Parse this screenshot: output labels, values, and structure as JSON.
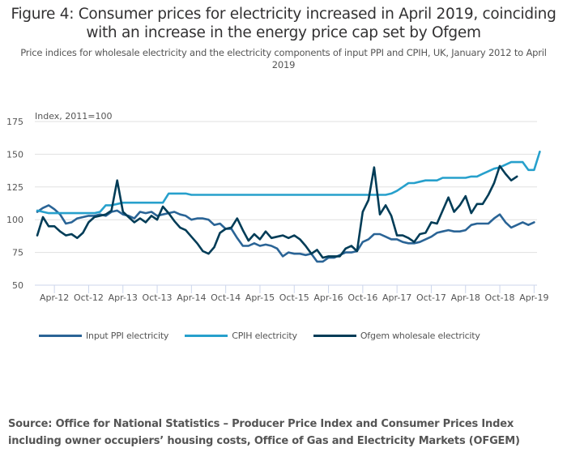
{
  "title": "Figure 4: Consumer prices for electricity increased in April 2019, coinciding with an increase in the energy price cap set by Ofgem",
  "subtitle": "Price indices for wholesale electricity and the electricity components of input PPI and CPIH, UK, January 2012 to April 2019",
  "source": "Source: Office for National Statistics – Producer Price Index and Consumer Prices Index including owner occupiers’ housing costs, Office of Gas and Electricity Markets (OFGEM)",
  "chart_data": {
    "type": "line",
    "title": "Figure 4: Consumer prices for electricity increased in April 2019, coinciding with an increase in the energy price cap set by Ofgem",
    "ylabel": "Index, 2011=100",
    "xlabel": "",
    "ylim": [
      50,
      175
    ],
    "yticks": [
      50,
      75,
      100,
      125,
      150,
      175
    ],
    "x_start": "Jan-12",
    "x_end": "Apr-19",
    "x_tick_labels": [
      "Apr-12",
      "Oct-12",
      "Apr-13",
      "Oct-13",
      "Apr-14",
      "Oct-14",
      "Apr-15",
      "Oct-15",
      "Apr-16",
      "Oct-16",
      "Apr-17",
      "Oct-17",
      "Apr-18",
      "Oct-18",
      "Apr-19"
    ],
    "x_tick_month_index": [
      3,
      9,
      15,
      21,
      27,
      33,
      39,
      45,
      51,
      57,
      63,
      69,
      75,
      81,
      87
    ],
    "grid": true,
    "legend_position": "bottom",
    "series": [
      {
        "name": "Input PPI electricity",
        "color": "#2a6496",
        "values": [
          106,
          109,
          111,
          108,
          104,
          97,
          98,
          101,
          102,
          103,
          103,
          104,
          103,
          106,
          107,
          104,
          103,
          101,
          106,
          105,
          106,
          103,
          104,
          105,
          106,
          104,
          103,
          100,
          101,
          101,
          100,
          96,
          97,
          93,
          93,
          86,
          80,
          80,
          82,
          80,
          81,
          80,
          78,
          72,
          75,
          74,
          74,
          73,
          74,
          68,
          68,
          71,
          71,
          73,
          75,
          75,
          76,
          83,
          85,
          89,
          89,
          87,
          85,
          85,
          83,
          82,
          82,
          83,
          85,
          87,
          90,
          91,
          92,
          91,
          91,
          92,
          96,
          97,
          97,
          97,
          101,
          104,
          98,
          94,
          96,
          98,
          96,
          98
        ]
      },
      {
        "name": "CPIH electricity",
        "color": "#27a0cc",
        "values": [
          107,
          106,
          105,
          105,
          105,
          105,
          105,
          105,
          105,
          105,
          105,
          106,
          111,
          111,
          112,
          113,
          113,
          113,
          113,
          113,
          113,
          113,
          113,
          120,
          120,
          120,
          120,
          119,
          119,
          119,
          119,
          119,
          119,
          119,
          119,
          119,
          119,
          119,
          119,
          119,
          119,
          119,
          119,
          119,
          119,
          119,
          119,
          119,
          119,
          119,
          119,
          119,
          119,
          119,
          119,
          119,
          119,
          119,
          119,
          119,
          119,
          119,
          120,
          122,
          125,
          128,
          128,
          129,
          130,
          130,
          130,
          132,
          132,
          132,
          132,
          132,
          133,
          133,
          135,
          137,
          139,
          140,
          142,
          144,
          144,
          144,
          138,
          138,
          152
        ]
      },
      {
        "name": "Ofgem wholesale electricity",
        "color": "#003c57",
        "values": [
          88,
          102,
          95,
          95,
          91,
          88,
          89,
          86,
          90,
          98,
          102,
          103,
          104,
          107,
          130,
          106,
          102,
          98,
          101,
          98,
          103,
          100,
          110,
          105,
          99,
          94,
          92,
          87,
          82,
          76,
          74,
          79,
          90,
          93,
          94,
          101,
          92,
          84,
          89,
          85,
          91,
          86,
          87,
          88,
          86,
          88,
          85,
          80,
          74,
          77,
          71,
          72,
          72,
          72,
          78,
          80,
          76,
          106,
          115,
          140,
          104,
          111,
          103,
          88,
          88,
          86,
          83,
          89,
          90,
          98,
          97,
          107,
          117,
          106,
          111,
          118,
          105,
          112,
          112,
          119,
          128,
          141,
          135,
          130,
          133
        ]
      }
    ]
  }
}
